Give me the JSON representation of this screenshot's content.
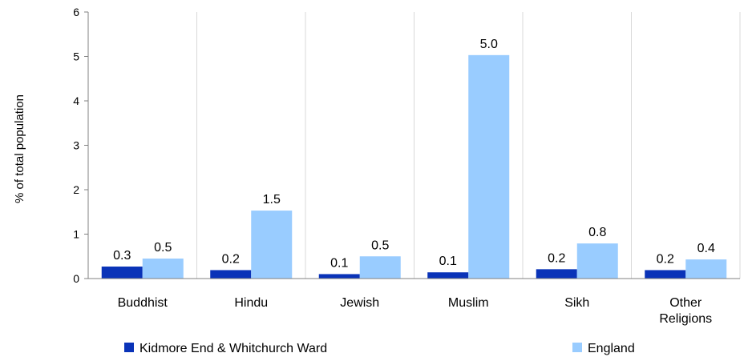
{
  "chart_data": {
    "type": "bar",
    "title": "",
    "xlabel": "",
    "ylabel": "% of total population",
    "ylim": [
      0,
      6
    ],
    "yticks": [
      0,
      1,
      2,
      3,
      4,
      5,
      6
    ],
    "grid": "vertical separators between categories",
    "legend_position": "bottom",
    "categories": [
      "Buddhist",
      "Hindu",
      "Jewish",
      "Muslim",
      "Sikh",
      "Other Religions"
    ],
    "category_labels": [
      [
        "Buddhist"
      ],
      [
        "Hindu"
      ],
      [
        "Jewish"
      ],
      [
        "Muslim"
      ],
      [
        "Sikh"
      ],
      [
        "Other",
        "Religions"
      ]
    ],
    "series": [
      {
        "name": "Kidmore End & Whitchurch Ward",
        "color": "#0a33b8",
        "values": [
          0.27,
          0.19,
          0.1,
          0.14,
          0.21,
          0.19
        ],
        "labels": [
          "0.3",
          "0.2",
          "0.1",
          "0.1",
          "0.2",
          "0.2"
        ]
      },
      {
        "name": "England",
        "color": "#99ccff",
        "values": [
          0.45,
          1.53,
          0.5,
          5.03,
          0.79,
          0.43
        ],
        "labels": [
          "0.5",
          "1.5",
          "0.5",
          "5.0",
          "0.8",
          "0.4"
        ]
      }
    ]
  }
}
